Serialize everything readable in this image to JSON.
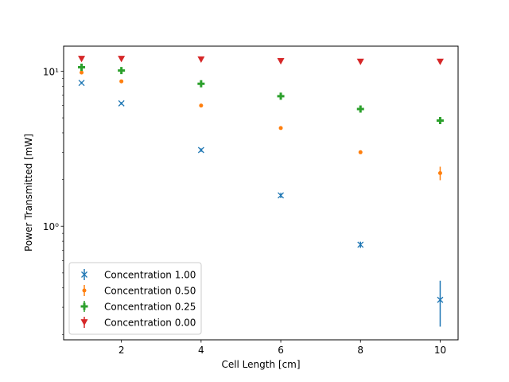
{
  "chart_data": {
    "type": "scatter",
    "title": "",
    "xlabel": "Cell Length [cm]",
    "ylabel": "Power Transmitted [mW]",
    "yscale": "log",
    "xlim": [
      0.55,
      10.45
    ],
    "ylim": [
      0.185,
      14.5
    ],
    "grid": false,
    "legend_position": "lower-left",
    "x_ticks": [
      2,
      4,
      6,
      8,
      10
    ],
    "x_tick_labels": [
      "2",
      "4",
      "6",
      "8",
      "10"
    ],
    "y_major_ticks": [
      1,
      10
    ],
    "y_major_tick_labels": [
      "10⁰",
      "10¹"
    ],
    "x": [
      1,
      2,
      4,
      6,
      8,
      10
    ],
    "series": [
      {
        "name": "Concentration 1.00",
        "marker": "x",
        "color": "#1f77b4",
        "values": [
          8.4,
          6.2,
          3.1,
          1.58,
          0.76,
          0.335
        ],
        "errors": [
          0.15,
          0.12,
          0.08,
          0.06,
          0.035,
          0.11
        ]
      },
      {
        "name": "Concentration 0.50",
        "marker": "dot",
        "color": "#ff7f0e",
        "values": [
          9.8,
          8.6,
          6.0,
          4.3,
          3.0,
          2.2
        ],
        "errors": [
          0.12,
          0.12,
          0.12,
          0.1,
          0.08,
          0.22
        ]
      },
      {
        "name": "Concentration 0.25",
        "marker": "plus",
        "color": "#2ca02c",
        "values": [
          10.6,
          10.1,
          8.3,
          6.9,
          5.7,
          4.8
        ],
        "errors": [
          0.15,
          0.15,
          0.12,
          0.12,
          0.1,
          0.1
        ]
      },
      {
        "name": "Concentration 0.00",
        "marker": "triangle-down",
        "color": "#d62728",
        "values": [
          12.0,
          12.0,
          11.9,
          11.6,
          11.5,
          11.5
        ],
        "errors": [
          0.1,
          0.1,
          0.1,
          0.1,
          0.1,
          0.1
        ]
      }
    ]
  }
}
